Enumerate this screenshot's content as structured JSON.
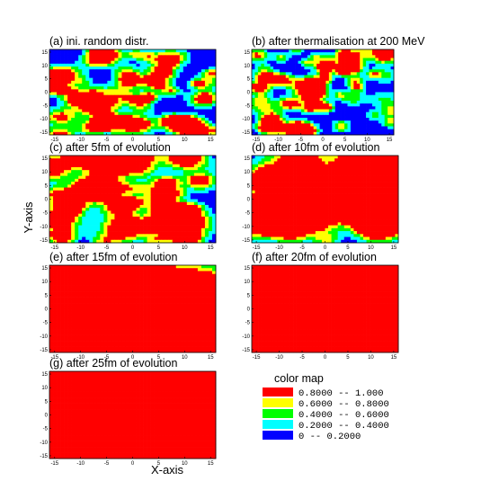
{
  "chart_data": {
    "type": "heatmap",
    "xlabel": "X-axis",
    "ylabel": "Y-axis",
    "xlim": [
      -16,
      16
    ],
    "ylim": [
      -16,
      16
    ],
    "xticks": [
      "-15",
      "-10",
      "-5",
      "0",
      "5",
      "10",
      "15"
    ],
    "yticks": [
      "15",
      "10",
      "5",
      "0",
      "-5",
      "-10",
      "-15"
    ],
    "panels": [
      {
        "title": "(a) ini. random distr.",
        "scale": 0.22,
        "seed": 11
      },
      {
        "title": "(b) after thermalisation at 200 MeV",
        "scale": 0.22,
        "seed": 23
      },
      {
        "title": "(c) after 5fm of evolution",
        "scale": 0.3,
        "seed": 37
      },
      {
        "title": "(d) after 10fm of evolution",
        "scale": 0.42,
        "seed": 41
      },
      {
        "title": "(e) after 15fm of evolution",
        "scale": 0.62,
        "seed": 53
      },
      {
        "title": "(f) after 20fm of evolution",
        "scale": 0.68,
        "seed": 67
      },
      {
        "title": "(g) after 25fm of evolution",
        "scale": 0.72,
        "seed": 79
      }
    ],
    "legend": {
      "title": "color map",
      "entries": [
        {
          "label": "0.8000  --  1.000",
          "color": "#ff0000"
        },
        {
          "label": "0.6000  --  0.8000",
          "color": "#ffff00"
        },
        {
          "label": "0.4000  --  0.6000",
          "color": "#00ff00"
        },
        {
          "label": "0.2000  --  0.4000",
          "color": "#00ffff"
        },
        {
          "label": "0  --  0.2000",
          "color": "#0000ff"
        }
      ]
    }
  }
}
